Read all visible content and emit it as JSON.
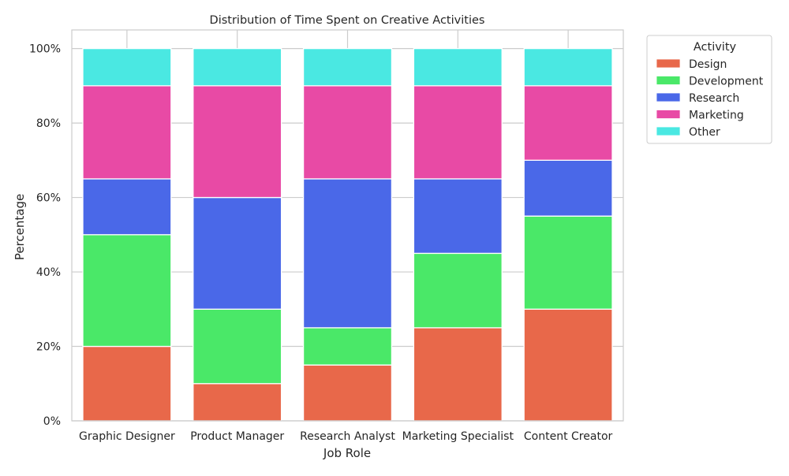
{
  "chart_data": {
    "type": "bar",
    "stacked": true,
    "title": "Distribution of Time Spent on Creative Activities",
    "xlabel": "Job Role",
    "ylabel": "Percentage",
    "ylim": [
      0,
      105
    ],
    "yticks": [
      0,
      20,
      40,
      60,
      80,
      100
    ],
    "ytick_labels": [
      "0%",
      "20%",
      "40%",
      "60%",
      "80%",
      "100%"
    ],
    "grid": true,
    "categories": [
      "Graphic Designer",
      "Product Manager",
      "Research Analyst",
      "Marketing Specialist",
      "Content Creator"
    ],
    "series": [
      {
        "name": "Design",
        "color": "#e8684a",
        "values": [
          20,
          10,
          15,
          25,
          30
        ]
      },
      {
        "name": "Development",
        "color": "#4ae868",
        "values": [
          30,
          20,
          10,
          20,
          25
        ]
      },
      {
        "name": "Research",
        "color": "#4a68e8",
        "values": [
          15,
          30,
          40,
          20,
          15
        ]
      },
      {
        "name": "Marketing",
        "color": "#e84aa5",
        "values": [
          25,
          30,
          25,
          25,
          20
        ]
      },
      {
        "name": "Other",
        "color": "#4ae8e2",
        "values": [
          10,
          10,
          10,
          10,
          10
        ]
      }
    ],
    "legend": {
      "title": "Activity",
      "placement": "outside-top-right"
    }
  }
}
